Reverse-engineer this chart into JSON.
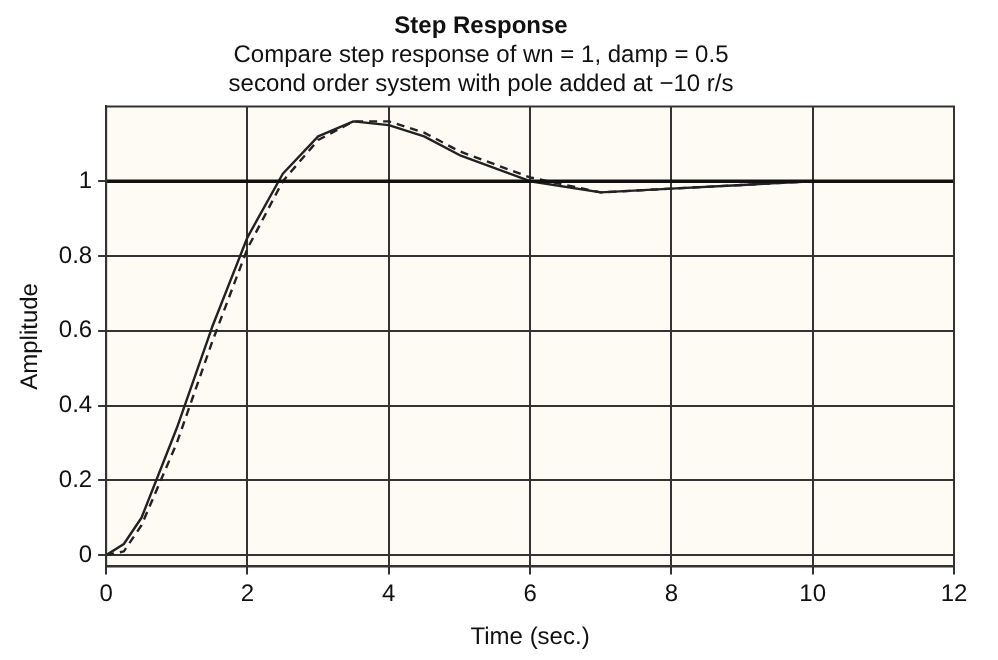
{
  "chart_data": {
    "type": "line",
    "title": "Step Response",
    "subtitle": "Compare step response of wn = 1, damp = 0.5\nsecond order system with pole added at −10 r/s",
    "xlabel": "Time (sec.)",
    "ylabel": "Amplitude",
    "x": [
      0,
      0.25,
      0.5,
      1,
      1.5,
      2,
      2.5,
      3,
      3.5,
      4,
      4.5,
      5,
      6,
      7,
      8,
      9,
      10,
      11,
      11.5
    ],
    "series": [
      {
        "color": "#222222",
        "line_style": "solid",
        "values": [
          0,
          0.03,
          0.1,
          0.34,
          0.61,
          0.85,
          1.02,
          1.12,
          1.16,
          1.15,
          1.12,
          1.07,
          1.0,
          0.97,
          0.98,
          0.99,
          1.0,
          1.0,
          1.0
        ]
      },
      {
        "color": "#222222",
        "line_style": "dashed",
        "values": [
          0,
          0.01,
          0.08,
          0.3,
          0.57,
          0.82,
          1.0,
          1.11,
          1.16,
          1.16,
          1.13,
          1.08,
          1.01,
          0.97,
          0.98,
          0.99,
          1.0,
          1.0,
          1.0
        ]
      }
    ],
    "xlim": [
      0,
      12
    ],
    "xticks": [
      0,
      2,
      4,
      6,
      8,
      10,
      12
    ],
    "ylim": [
      -0.03,
      1.2
    ],
    "yticks": [
      0,
      0.2,
      0.4,
      0.6,
      0.8,
      1
    ],
    "ref_lines": [
      {
        "axis": "y",
        "value": 1,
        "color": "#111111"
      }
    ],
    "grid": true,
    "legend": false,
    "marker": "none"
  }
}
